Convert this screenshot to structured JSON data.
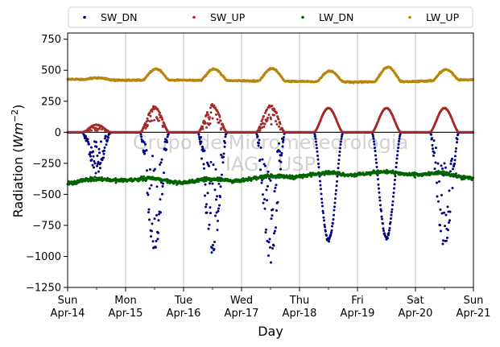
{
  "chart_data": {
    "type": "scatter",
    "title": "",
    "xlabel": "Day",
    "ylabel": "Radiation (Wm^-2)",
    "ylabel_main": "Radiation (",
    "ylabel_unit_base": "Wm",
    "ylabel_unit_exp": "−2",
    "ylabel_close": ")",
    "ylim": [
      -1250,
      800
    ],
    "xlim": [
      0,
      7
    ],
    "yticks": [
      750,
      500,
      250,
      0,
      -250,
      -500,
      -750,
      -1000,
      -1250
    ],
    "ytick_labels": [
      "750",
      "500",
      "250",
      "0",
      "−250",
      "−500",
      "−750",
      "−1000",
      "−1250"
    ],
    "xticks": [
      {
        "x": 0,
        "weekday": "Sun",
        "date": "Apr-14"
      },
      {
        "x": 1,
        "weekday": "Mon",
        "date": "Apr-15"
      },
      {
        "x": 2,
        "weekday": "Tue",
        "date": "Apr-16"
      },
      {
        "x": 3,
        "weekday": "Wed",
        "date": "Apr-17"
      },
      {
        "x": 4,
        "weekday": "Thu",
        "date": "Apr-18"
      },
      {
        "x": 5,
        "weekday": "Fri",
        "date": "Apr-19"
      },
      {
        "x": 6,
        "weekday": "Sat",
        "date": "Apr-20"
      },
      {
        "x": 7,
        "weekday": "Sun",
        "date": "Apr-21"
      }
    ],
    "grid": "vertical",
    "zero_line": 0,
    "legend_position": "top",
    "watermark": [
      "Grupo de Micrometeorologia",
      "IAG / USP"
    ],
    "series": [
      {
        "name": "SW_DN",
        "color": "#000080",
        "baseline": 0,
        "daily_peak": [
          -300,
          -920,
          -950,
          -990,
          -870,
          -850,
          -900
        ],
        "daily_noise": [
          120,
          240,
          260,
          250,
          60,
          50,
          150
        ],
        "day_window": [
          0.25,
          0.75
        ]
      },
      {
        "name": "SW_UP",
        "color": "#a52a2a",
        "baseline": 0,
        "daily_peak": [
          60,
          200,
          215,
          215,
          195,
          195,
          195
        ],
        "daily_noise": [
          15,
          40,
          40,
          40,
          6,
          6,
          8
        ],
        "day_window": [
          0.25,
          0.75
        ]
      },
      {
        "name": "LW_DN",
        "color": "#006400",
        "daily_level": [
          -400,
          -375,
          -395,
          -380,
          -345,
          -330,
          -330,
          -360
        ],
        "noise": 12
      },
      {
        "name": "LW_UP",
        "color": "#b8860b",
        "daily_night": [
          428,
          420,
          420,
          415,
          410,
          405,
          410,
          425
        ],
        "daily_peak": [
          440,
          510,
          510,
          515,
          495,
          525,
          505
        ],
        "noise": 5,
        "day_window": [
          0.3,
          0.75
        ]
      }
    ]
  }
}
